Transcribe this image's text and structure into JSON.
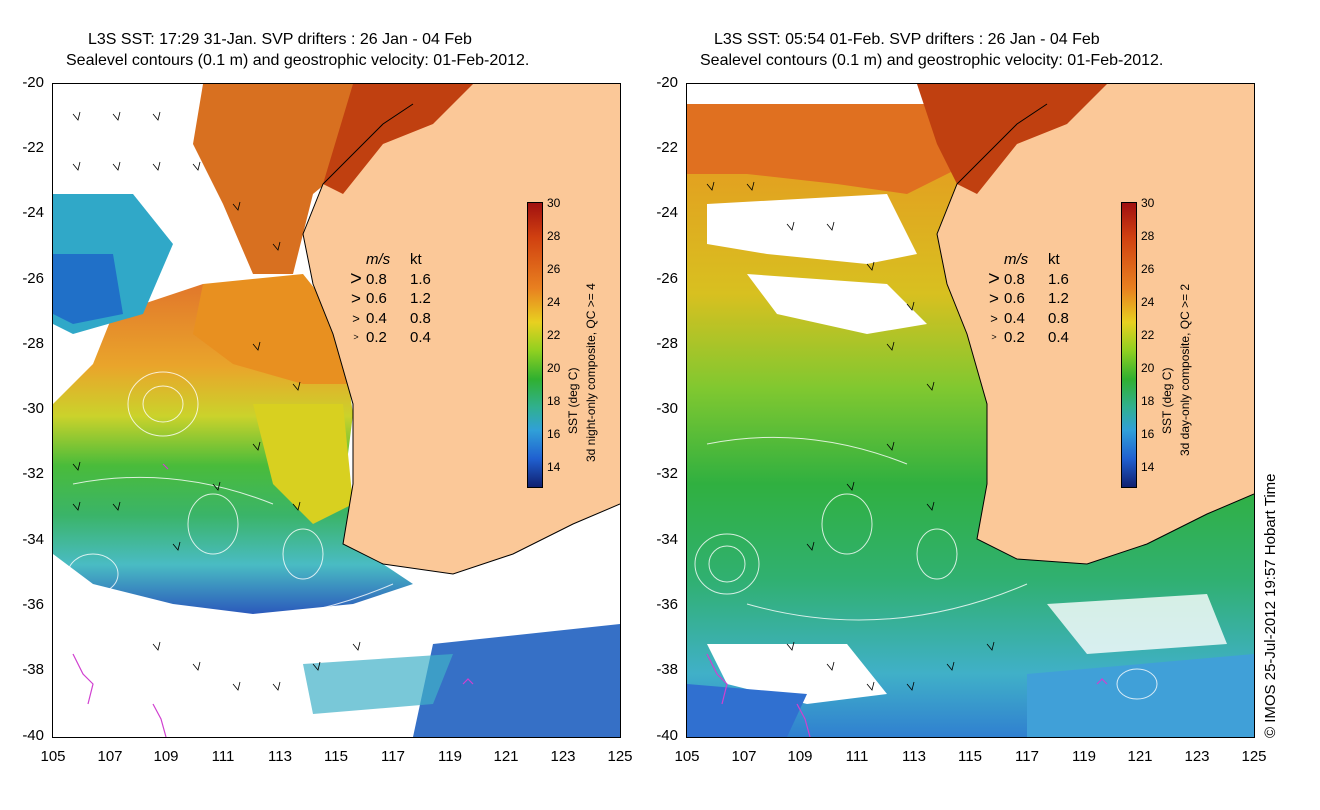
{
  "panels": [
    {
      "title_line1": "L3S SST: 17:29 31-Jan. SVP drifters : 26 Jan - 04 Feb",
      "title_line2": "Sealevel contours (0.1 m) and geostrophic velocity: 01-Feb-2012.",
      "colorbar_title_line1": "SST (deg C)",
      "colorbar_title_line2": "3d night-only composite, QC >= 4"
    },
    {
      "title_line1": "L3S SST: 05:54 01-Feb. SVP drifters : 26 Jan - 04 Feb",
      "title_line2": "Sealevel contours (0.1 m) and geostrophic velocity: 01-Feb-2012.",
      "colorbar_title_line1": "SST (deg C)",
      "colorbar_title_line2": "3d day-only composite, QC >= 2"
    }
  ],
  "y_ticks": [
    "-20",
    "-22",
    "-24",
    "-26",
    "-28",
    "-30",
    "-32",
    "-34",
    "-36",
    "-38",
    "-40"
  ],
  "x_ticks": [
    "105",
    "107",
    "109",
    "111",
    "113",
    "115",
    "117",
    "119",
    "121",
    "123",
    "125"
  ],
  "colorbar_ticks": [
    "30",
    "28",
    "26",
    "24",
    "22",
    "20",
    "18",
    "16",
    "14"
  ],
  "legend": {
    "header_ms": "m/s",
    "header_kt": "kt",
    "rows": [
      {
        "ms": "0.8",
        "kt": "1.6"
      },
      {
        "ms": "0.6",
        "kt": "1.2"
      },
      {
        "ms": "0.4",
        "kt": "0.8"
      },
      {
        "ms": "0.2",
        "kt": "0.4"
      }
    ]
  },
  "credit": "© IMOS 25-Jul-2012 19:57 Hobart Time",
  "colors": {
    "land": "#FBC898",
    "warm": "#C83C10",
    "orange": "#E88A20",
    "yellow": "#E8D020",
    "green": "#38B030",
    "cyan": "#30B0C0",
    "blue": "#2060C0"
  }
}
